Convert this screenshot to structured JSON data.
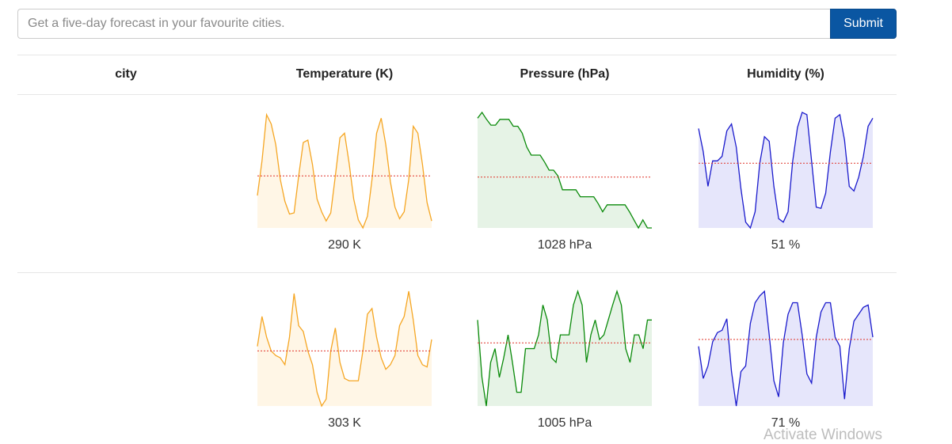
{
  "search": {
    "placeholder": "Get a five-day forecast in your favourite cities.",
    "submit_label": "Submit"
  },
  "table": {
    "headers": [
      "city",
      "Temperature (K)",
      "Pressure (hPa)",
      "Humidity (%)"
    ],
    "rows": [
      {
        "city": "",
        "temperature": {
          "label": "290 K",
          "color": "#f5a623",
          "fill": "#fff6e6",
          "average": 0.45,
          "series": [
            0.28,
            0.58,
            0.98,
            0.9,
            0.72,
            0.42,
            0.23,
            0.12,
            0.13,
            0.45,
            0.74,
            0.76,
            0.55,
            0.25,
            0.14,
            0.06,
            0.13,
            0.45,
            0.78,
            0.82,
            0.56,
            0.25,
            0.07,
            0.0,
            0.1,
            0.42,
            0.82,
            0.95,
            0.72,
            0.4,
            0.18,
            0.08,
            0.14,
            0.42,
            0.88,
            0.82,
            0.55,
            0.22,
            0.06
          ]
        },
        "pressure": {
          "label": "1028 hPa",
          "color": "#0a8a0a",
          "fill": "#e6f3e6",
          "average": 0.44,
          "series": [
            0.95,
            1.0,
            0.94,
            0.89,
            0.89,
            0.94,
            0.94,
            0.94,
            0.88,
            0.88,
            0.82,
            0.7,
            0.63,
            0.63,
            0.63,
            0.57,
            0.5,
            0.5,
            0.45,
            0.33,
            0.33,
            0.33,
            0.33,
            0.27,
            0.27,
            0.27,
            0.27,
            0.21,
            0.14,
            0.2,
            0.2,
            0.2,
            0.2,
            0.2,
            0.14,
            0.07,
            0.0,
            0.07,
            0.0,
            0.0
          ]
        },
        "humidity": {
          "label": "51 %",
          "color": "#1a1acc",
          "fill": "#e6e6fb",
          "average": 0.56,
          "series": [
            0.86,
            0.66,
            0.36,
            0.58,
            0.58,
            0.62,
            0.84,
            0.9,
            0.7,
            0.34,
            0.05,
            0.0,
            0.14,
            0.56,
            0.79,
            0.75,
            0.36,
            0.08,
            0.05,
            0.14,
            0.58,
            0.87,
            1.0,
            0.98,
            0.58,
            0.18,
            0.17,
            0.3,
            0.66,
            0.95,
            0.98,
            0.76,
            0.36,
            0.32,
            0.44,
            0.62,
            0.88,
            0.95
          ]
        }
      },
      {
        "city": "",
        "temperature": {
          "label": "303 K",
          "color": "#f5a623",
          "fill": "#fff6e6",
          "average": 0.48,
          "series": [
            0.52,
            0.78,
            0.6,
            0.48,
            0.44,
            0.42,
            0.36,
            0.6,
            0.98,
            0.7,
            0.65,
            0.48,
            0.36,
            0.12,
            0.0,
            0.06,
            0.48,
            0.68,
            0.38,
            0.24,
            0.22,
            0.22,
            0.22,
            0.48,
            0.8,
            0.85,
            0.6,
            0.42,
            0.32,
            0.36,
            0.44,
            0.7,
            0.78,
            1.0,
            0.75,
            0.44,
            0.36,
            0.34,
            0.58
          ]
        },
        "pressure": {
          "label": "1005 hPa",
          "color": "#0a8a0a",
          "fill": "#e6f3e6",
          "average": 0.55,
          "series": [
            0.75,
            0.25,
            0.0,
            0.38,
            0.5,
            0.25,
            0.42,
            0.62,
            0.38,
            0.12,
            0.12,
            0.5,
            0.5,
            0.5,
            0.62,
            0.88,
            0.75,
            0.42,
            0.38,
            0.62,
            0.62,
            0.62,
            0.88,
            1.0,
            0.88,
            0.38,
            0.62,
            0.75,
            0.58,
            0.62,
            0.75,
            0.88,
            1.0,
            0.88,
            0.5,
            0.38,
            0.62,
            0.62,
            0.5,
            0.75,
            0.75
          ]
        },
        "humidity": {
          "label": "71 %",
          "color": "#1a1acc",
          "fill": "#e6e6fb",
          "average": 0.58,
          "series": [
            0.52,
            0.24,
            0.35,
            0.56,
            0.64,
            0.66,
            0.76,
            0.3,
            0.0,
            0.3,
            0.35,
            0.72,
            0.9,
            0.96,
            1.0,
            0.62,
            0.22,
            0.08,
            0.55,
            0.8,
            0.9,
            0.9,
            0.62,
            0.28,
            0.2,
            0.6,
            0.82,
            0.9,
            0.9,
            0.6,
            0.52,
            0.06,
            0.5,
            0.74,
            0.8,
            0.86,
            0.88,
            0.6
          ]
        }
      }
    ]
  },
  "system": {
    "watermark": "Activate Windows"
  }
}
